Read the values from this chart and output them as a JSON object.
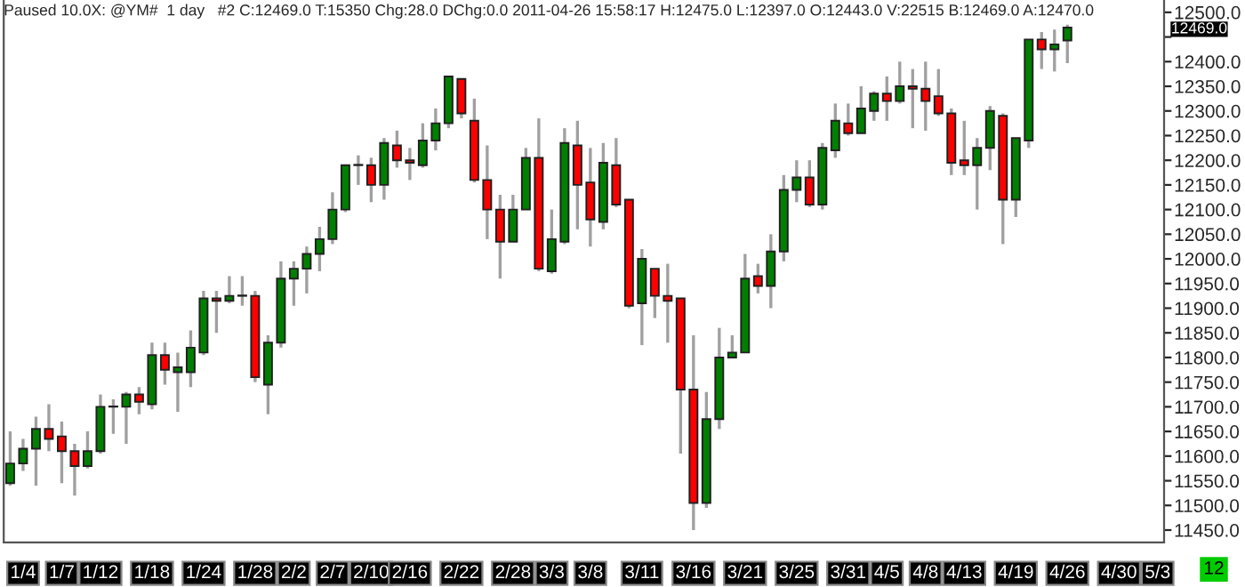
{
  "chart_data": {
    "type": "candlestick",
    "title": "Paused 10.0X: @YM#  1 day   #2 C:12469.0 T:15350 Chg:28.0 DChg:0.0 2011-04-26 15:58:17 H:12475.0 L:12397.0 O:12443.0 V:22515 B:12469.0 A:12470.0",
    "categories": [
      null,
      "1/4",
      null,
      null,
      "1/7",
      null,
      null,
      "1/12",
      null,
      null,
      null,
      "1/18",
      null,
      null,
      null,
      "1/24",
      null,
      null,
      null,
      "1/28",
      null,
      null,
      "2/2",
      null,
      null,
      "2/7",
      null,
      null,
      "2/10",
      null,
      null,
      "2/16",
      null,
      null,
      null,
      "2/22",
      null,
      null,
      null,
      "2/28",
      null,
      null,
      "3/3",
      null,
      null,
      "3/8",
      null,
      null,
      null,
      "3/11",
      null,
      null,
      null,
      "3/16",
      null,
      null,
      null,
      "3/21",
      null,
      null,
      null,
      "3/25",
      null,
      null,
      null,
      "3/31",
      null,
      null,
      "4/5",
      null,
      null,
      "4/8",
      null,
      null,
      "4/13",
      null,
      null,
      null,
      "4/19",
      null,
      null,
      null,
      "4/26",
      null,
      null,
      null,
      "4/30",
      null,
      null,
      "5/3"
    ],
    "ohlc": [
      [
        11545,
        11650,
        11540,
        11585
      ],
      [
        11585,
        11635,
        11570,
        11615
      ],
      [
        11615,
        11680,
        11540,
        11655
      ],
      [
        11655,
        11705,
        11610,
        11635
      ],
      [
        11640,
        11670,
        11545,
        11610
      ],
      [
        11610,
        11625,
        11520,
        11580
      ],
      [
        11580,
        11650,
        11575,
        11610
      ],
      [
        11610,
        11725,
        11605,
        11700
      ],
      [
        11700,
        11715,
        11645,
        11700
      ],
      [
        11700,
        11730,
        11625,
        11725
      ],
      [
        11725,
        11740,
        11685,
        11710
      ],
      [
        11705,
        11830,
        11695,
        11805
      ],
      [
        11805,
        11830,
        11745,
        11775
      ],
      [
        11770,
        11810,
        11690,
        11780
      ],
      [
        11770,
        11855,
        11740,
        11820
      ],
      [
        11810,
        11935,
        11805,
        11920
      ],
      [
        11920,
        11935,
        11850,
        11915
      ],
      [
        11915,
        11965,
        11910,
        11925
      ],
      [
        11925,
        11965,
        11905,
        11925
      ],
      [
        11925,
        11935,
        11750,
        11760
      ],
      [
        11745,
        11845,
        11685,
        11830
      ],
      [
        11830,
        11995,
        11820,
        11960
      ],
      [
        11960,
        11995,
        11905,
        11980
      ],
      [
        11980,
        12025,
        11930,
        12010
      ],
      [
        12010,
        12065,
        11975,
        12040
      ],
      [
        12040,
        12135,
        12030,
        12100
      ],
      [
        12100,
        12190,
        12095,
        12190
      ],
      [
        12190,
        12210,
        12150,
        12190
      ],
      [
        12190,
        12205,
        12115,
        12150
      ],
      [
        12150,
        12245,
        12120,
        12235
      ],
      [
        12230,
        12260,
        12185,
        12200
      ],
      [
        12200,
        12225,
        12160,
        12195
      ],
      [
        12190,
        12275,
        12185,
        12240
      ],
      [
        12240,
        12305,
        12220,
        12275
      ],
      [
        12275,
        12370,
        12265,
        12370
      ],
      [
        12365,
        12365,
        12285,
        12295
      ],
      [
        12280,
        12325,
        12155,
        12160
      ],
      [
        12160,
        12230,
        12040,
        12100
      ],
      [
        12100,
        12130,
        11960,
        12035
      ],
      [
        12035,
        12130,
        12035,
        12100
      ],
      [
        12100,
        12225,
        12100,
        12205
      ],
      [
        12205,
        12285,
        11975,
        11980
      ],
      [
        11975,
        12100,
        11970,
        12040
      ],
      [
        12035,
        12265,
        12030,
        12235
      ],
      [
        12230,
        12280,
        12060,
        12150
      ],
      [
        12155,
        12225,
        12025,
        12080
      ],
      [
        12075,
        12235,
        12060,
        12195
      ],
      [
        12190,
        12245,
        12105,
        12110
      ],
      [
        12120,
        12120,
        11900,
        11905
      ],
      [
        11910,
        12020,
        11825,
        12000
      ],
      [
        11980,
        11980,
        11880,
        11925
      ],
      [
        11925,
        11990,
        11830,
        11915
      ],
      [
        11920,
        11920,
        11605,
        11735
      ],
      [
        11735,
        11845,
        11450,
        11505
      ],
      [
        11505,
        11730,
        11495,
        11675
      ],
      [
        11675,
        11860,
        11655,
        11800
      ],
      [
        11800,
        11845,
        11800,
        11810
      ],
      [
        11810,
        12010,
        11810,
        11960
      ],
      [
        11965,
        11990,
        11930,
        11945
      ],
      [
        11945,
        12050,
        11900,
        12015
      ],
      [
        12015,
        12170,
        11995,
        12140
      ],
      [
        12140,
        12200,
        12115,
        12165
      ],
      [
        12165,
        12200,
        12105,
        12110
      ],
      [
        12110,
        12235,
        12100,
        12225
      ],
      [
        12220,
        12315,
        12205,
        12280
      ],
      [
        12275,
        12315,
        12250,
        12255
      ],
      [
        12255,
        12350,
        12255,
        12305
      ],
      [
        12300,
        12340,
        12280,
        12335
      ],
      [
        12335,
        12370,
        12280,
        12320
      ],
      [
        12320,
        12400,
        12315,
        12350
      ],
      [
        12350,
        12385,
        12265,
        12345
      ],
      [
        12345,
        12400,
        12260,
        12320
      ],
      [
        12330,
        12385,
        12290,
        12295
      ],
      [
        12295,
        12305,
        12170,
        12195
      ],
      [
        12200,
        12280,
        12170,
        12190
      ],
      [
        12190,
        12245,
        12100,
        12225
      ],
      [
        12225,
        12310,
        12180,
        12300
      ],
      [
        12290,
        12295,
        12030,
        12120
      ],
      [
        12120,
        12245,
        12085,
        12245
      ],
      [
        12240,
        12445,
        12225,
        12445
      ],
      [
        12445,
        12460,
        12385,
        12425
      ],
      [
        12425,
        12465,
        12380,
        12435
      ],
      [
        12443,
        12475,
        12397,
        12469
      ],
      null,
      null,
      null,
      null,
      null,
      null,
      null
    ],
    "colors": [
      "#008000",
      "#008000",
      "#008000",
      "#ff0000",
      "#ff0000",
      "#ff0000",
      "#008000",
      "#008000",
      "#008000",
      "#008000",
      "#ff0000",
      "#008000",
      "#ff0000",
      "#008000",
      "#008000",
      "#008000",
      "#ff0000",
      "#008000",
      "#008000",
      "#ff0000",
      "#008000",
      "#008000",
      "#008000",
      "#008000",
      "#008000",
      "#008000",
      "#008000",
      "#008000",
      "#ff0000",
      "#008000",
      "#ff0000",
      "#ff0000",
      "#008000",
      "#008000",
      "#008000",
      "#ff0000",
      "#ff0000",
      "#ff0000",
      "#ff0000",
      "#008000",
      "#008000",
      "#ff0000",
      "#008000",
      "#008000",
      "#ff0000",
      "#ff0000",
      "#008000",
      "#ff0000",
      "#ff0000",
      "#008000",
      "#ff0000",
      "#ff0000",
      "#ff0000",
      "#ff0000",
      "#008000",
      "#008000",
      "#008000",
      "#008000",
      "#ff0000",
      "#008000",
      "#008000",
      "#008000",
      "#ff0000",
      "#008000",
      "#008000",
      "#ff0000",
      "#008000",
      "#008000",
      "#ff0000",
      "#008000",
      "#ff0000",
      "#ff0000",
      "#ff0000",
      "#ff0000",
      "#ff0000",
      "#008000",
      "#008000",
      "#ff0000",
      "#008000",
      "#008000",
      "#ff0000",
      "#008000",
      "#008000",
      null,
      null,
      null,
      null,
      null,
      null,
      null
    ],
    "ylim": [
      11425,
      12525
    ],
    "yticks": [
      {
        "value": 11450,
        "label": "11450.0"
      },
      {
        "value": 11500,
        "label": "11500.0"
      },
      {
        "value": 11550,
        "label": "11550.0"
      },
      {
        "value": 11600,
        "label": "11600.0"
      },
      {
        "value": 11650,
        "label": "11650.0"
      },
      {
        "value": 11700,
        "label": "11700.0"
      },
      {
        "value": 11750,
        "label": "11750.0"
      },
      {
        "value": 11800,
        "label": "11800.0"
      },
      {
        "value": 11850,
        "label": "11850.0"
      },
      {
        "value": 11900,
        "label": "11900.0"
      },
      {
        "value": 11950,
        "label": "11950.0"
      },
      {
        "value": 12000,
        "label": "12000.0"
      },
      {
        "value": 12050,
        "label": "12050.0"
      },
      {
        "value": 12100,
        "label": "12100.0"
      },
      {
        "value": 12150,
        "label": "12150.0"
      },
      {
        "value": 12200,
        "label": "12200.0"
      },
      {
        "value": 12250,
        "label": "12250.0"
      },
      {
        "value": 12300,
        "label": "12300.0"
      },
      {
        "value": 12350,
        "label": "12350.0"
      },
      {
        "value": 12400,
        "label": "12400.0"
      },
      {
        "value": 12450,
        "label": null
      },
      {
        "value": 12500,
        "label": "12500.0"
      }
    ],
    "annotations": [
      "12469.0",
      "12"
    ],
    "grid": false,
    "legend": false
  }
}
